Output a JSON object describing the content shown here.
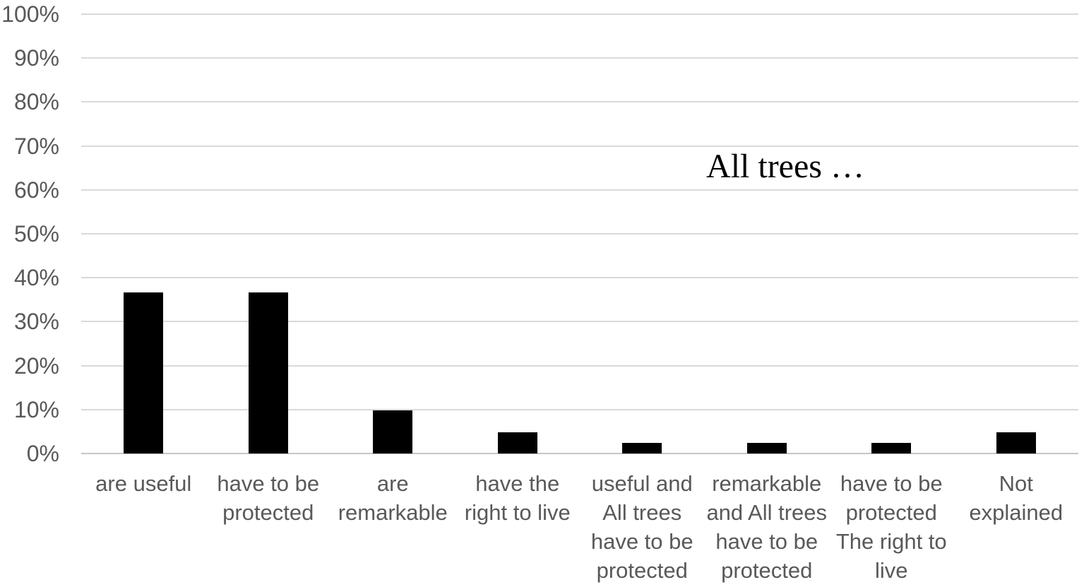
{
  "chart_data": {
    "type": "bar",
    "title": "All trees …",
    "categories": [
      "are useful",
      "have to be protected",
      "are remarkable",
      "have the right to live",
      "useful and All trees have to be protected",
      "remarkable and All trees have to be protected",
      "have to be protected The right to live",
      "Not explained"
    ],
    "category_lines": [
      [
        "are useful"
      ],
      [
        "have to be",
        "protected"
      ],
      [
        "are",
        "remarkable"
      ],
      [
        "have the",
        "right to live"
      ],
      [
        "useful and",
        "All trees",
        "have to be",
        "protected"
      ],
      [
        "remarkable",
        "and All trees",
        "have to be",
        "protected"
      ],
      [
        "have to be",
        "protected",
        "The right to",
        "live"
      ],
      [
        "Not",
        "explained"
      ]
    ],
    "values": [
      36.6,
      36.6,
      9.8,
      4.9,
      2.4,
      2.4,
      2.4,
      4.9
    ],
    "unit": "%",
    "xlabel": "",
    "ylabel": "",
    "ylim": [
      0,
      100
    ],
    "ytick_step": 10,
    "ytick_labels": [
      "0%",
      "10%",
      "20%",
      "30%",
      "40%",
      "50%",
      "60%",
      "70%",
      "80%",
      "90%",
      "100%"
    ],
    "grid": true,
    "legend": false,
    "title_position": "inside-plot-upper-right",
    "colors": {
      "bar": "#000000",
      "gridline": "#d9d9d9",
      "baseline": "#c6c6c6",
      "axis_text": "#595959",
      "title_text": "#000000",
      "background": "#ffffff"
    }
  }
}
